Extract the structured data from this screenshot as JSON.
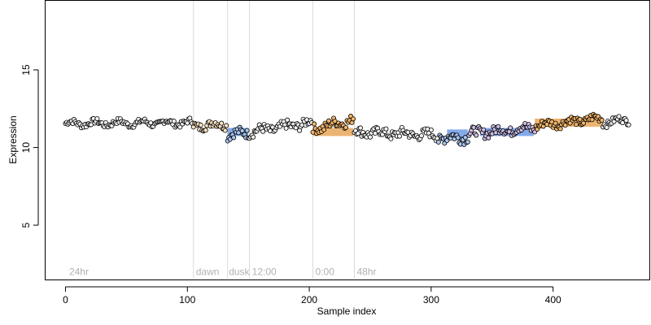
{
  "chart_data": {
    "type": "scatter",
    "title": "",
    "xlabel": "Sample index",
    "ylabel": "Expression",
    "xlim": [
      -17,
      479
    ],
    "ylim": [
      1.5,
      19.5
    ],
    "x_ticks": [
      0,
      100,
      200,
      300,
      400
    ],
    "y_ticks": [
      5,
      10,
      15
    ],
    "grid": false,
    "legend": "none",
    "colors": {
      "point_edge": "#000000",
      "point_default": "#f2f2f2",
      "point_light": "#ffe6c4",
      "point_orange": "#f3b56a",
      "point_blue": "#a9c6ef",
      "point_purple": "#cdbfe6",
      "band_blue": "#6f9be8",
      "band_orange": "#e9a75a",
      "separator": "#d9d9d9",
      "period_label": "#b0b0b0"
    },
    "separators": [
      105,
      133,
      151,
      203,
      237
    ],
    "period_labels": [
      {
        "x": 3,
        "text": "24hr"
      },
      {
        "x": 107,
        "text": "dawn"
      },
      {
        "x": 134,
        "text": "dusk"
      },
      {
        "x": 153,
        "text": "12:00"
      },
      {
        "x": 205,
        "text": "0:00"
      },
      {
        "x": 239,
        "text": "48hr"
      }
    ],
    "period_label_y": 2,
    "segments": [
      {
        "x0": 0,
        "x1": 104,
        "y0": 11.55,
        "y1": 11.6,
        "noise": 0.18,
        "color": "point_default"
      },
      {
        "x0": 105,
        "x1": 132,
        "y0": 11.4,
        "y1": 11.5,
        "noise": 0.25,
        "color": "point_light"
      },
      {
        "x0": 133,
        "x1": 150,
        "y0": 10.8,
        "y1": 11.0,
        "noise": 0.3,
        "color": "point_blue"
      },
      {
        "x0": 151,
        "x1": 202,
        "y0": 11.0,
        "y1": 11.6,
        "noise": 0.3,
        "color": "point_default"
      },
      {
        "x0": 203,
        "x1": 236,
        "y0": 11.2,
        "y1": 11.8,
        "noise": 0.3,
        "color": "point_orange"
      },
      {
        "x0": 237,
        "x1": 305,
        "y0": 11.0,
        "y1": 10.8,
        "noise": 0.3,
        "color": "point_default"
      },
      {
        "x0": 306,
        "x1": 330,
        "y0": 10.6,
        "y1": 10.7,
        "noise": 0.35,
        "color": "point_blue"
      },
      {
        "x0": 331,
        "x1": 385,
        "y0": 10.9,
        "y1": 11.3,
        "noise": 0.3,
        "color": "point_purple"
      },
      {
        "x0": 386,
        "x1": 440,
        "y0": 11.4,
        "y1": 11.9,
        "noise": 0.25,
        "color": "point_orange"
      },
      {
        "x0": 441,
        "x1": 462,
        "y0": 11.6,
        "y1": 11.8,
        "noise": 0.2,
        "color": "point_default"
      }
    ],
    "bands": [
      {
        "x0": 133,
        "x1": 150,
        "y": 11.0,
        "color": "band_blue"
      },
      {
        "x0": 203,
        "x1": 236,
        "y": 11.0,
        "color": "band_orange"
      },
      {
        "x0": 313,
        "x1": 330,
        "y": 10.9,
        "color": "band_blue"
      },
      {
        "x0": 340,
        "x1": 384,
        "y": 11.0,
        "color": "band_blue"
      },
      {
        "x0": 385,
        "x1": 440,
        "y": 11.6,
        "color": "band_orange"
      }
    ]
  }
}
